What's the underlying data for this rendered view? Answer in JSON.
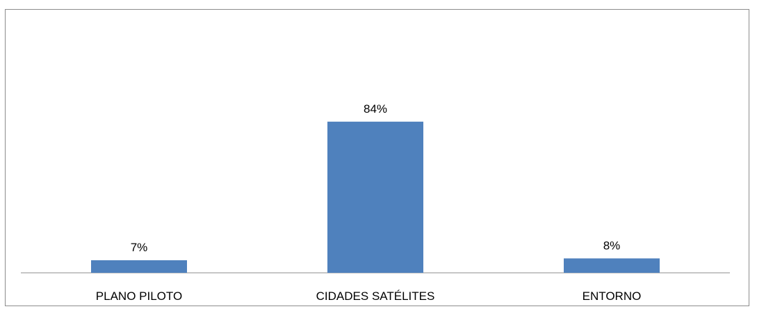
{
  "chart_data": {
    "type": "bar",
    "categories": [
      "PLANO PILOTO",
      "CIDADES SATÉLITES",
      "ENTORNO"
    ],
    "values": [
      7,
      84,
      8
    ],
    "value_labels": [
      "7%",
      "84%",
      "8%"
    ],
    "title": "",
    "xlabel": "",
    "ylabel": "",
    "ylim": [
      0,
      140
    ],
    "grid": false,
    "legend": "none",
    "bar_color": "#4f81bd",
    "axis_color": "#8c8c8c"
  }
}
